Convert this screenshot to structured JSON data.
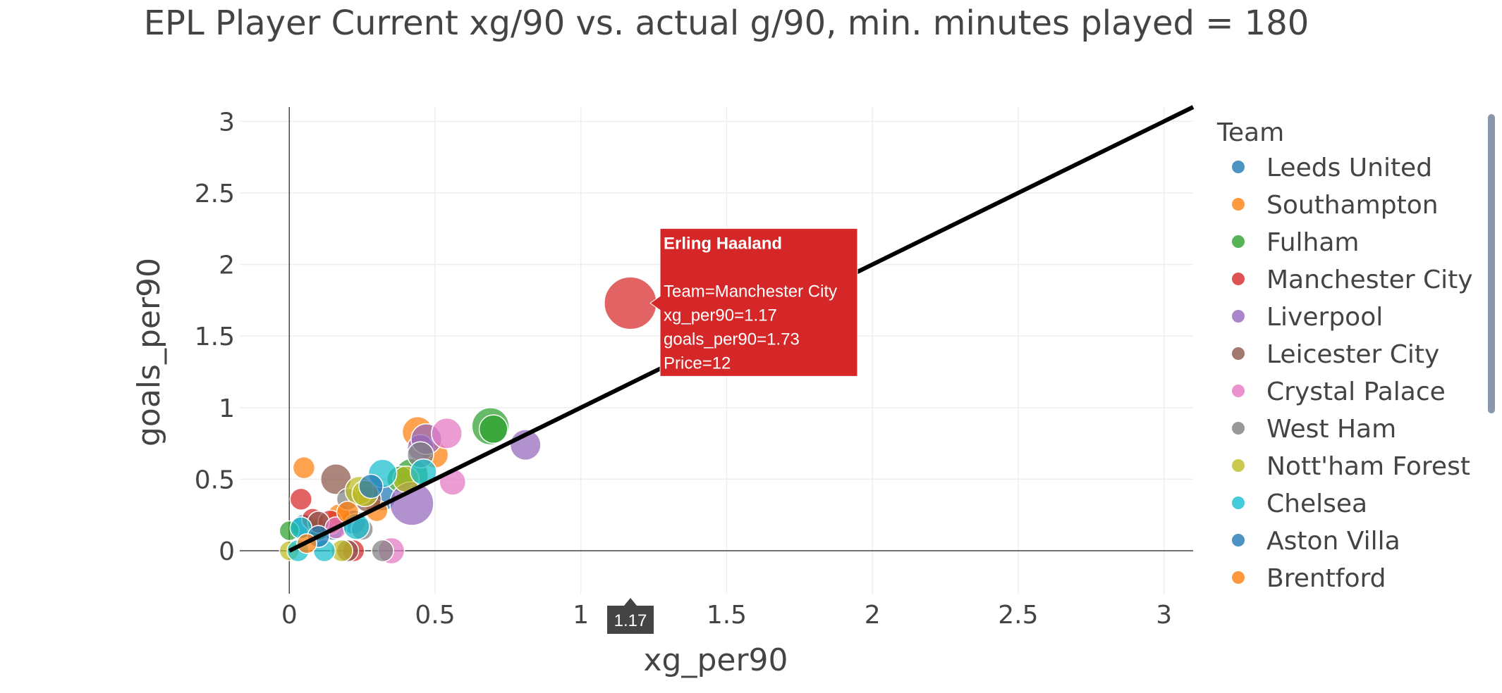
{
  "chart_data": {
    "type": "scatter",
    "title": "EPL Player Current xg/90 vs. actual g/90, min. minutes played = 180",
    "xlabel": "xg_per90",
    "ylabel": "goals_per90",
    "xlim": [
      -0.17,
      3.1
    ],
    "ylim": [
      -0.3,
      3.1
    ],
    "x_ticks": [
      {
        "value": 0,
        "label": "0"
      },
      {
        "value": 0.5,
        "label": "0.5"
      },
      {
        "value": 1,
        "label": "1"
      },
      {
        "value": 1.5,
        "label": "1.5"
      },
      {
        "value": 2,
        "label": "2"
      },
      {
        "value": 2.5,
        "label": "2.5"
      },
      {
        "value": 3,
        "label": "3"
      }
    ],
    "y_ticks": [
      {
        "value": 0,
        "label": "0"
      },
      {
        "value": 0.5,
        "label": "0.5"
      },
      {
        "value": 1,
        "label": "1"
      },
      {
        "value": 1.5,
        "label": "1.5"
      },
      {
        "value": 2,
        "label": "2"
      },
      {
        "value": 2.5,
        "label": "2.5"
      },
      {
        "value": 3,
        "label": "3"
      }
    ],
    "grid": true,
    "legend_title": "Team",
    "legend_position": "right",
    "reference_line": {
      "from": [
        0,
        0
      ],
      "to": [
        3.1,
        3.1
      ],
      "color": "#000000"
    },
    "series": [
      {
        "name": "Leeds United",
        "color": "#1f77b4",
        "points": [
          [
            0.05,
            0.17,
            5.5
          ],
          [
            0.15,
            0.15,
            5
          ],
          [
            0.22,
            0.2,
            5.5
          ],
          [
            0.32,
            0.37,
            6
          ]
        ]
      },
      {
        "name": "Southampton",
        "color": "#ff7f0e",
        "points": [
          [
            0.05,
            0.58,
            5
          ],
          [
            0.44,
            0.83,
            7
          ],
          [
            0.5,
            0.67,
            6
          ],
          [
            0.3,
            0.28,
            5
          ],
          [
            0.17,
            0.25,
            5
          ]
        ]
      },
      {
        "name": "Fulham",
        "color": "#2ca02c",
        "points": [
          [
            0.69,
            0.87,
            8.5
          ],
          [
            0.7,
            0.85,
            6.5
          ],
          [
            0.42,
            0.53,
            7.5
          ],
          [
            0.38,
            0.5,
            6
          ],
          [
            0.0,
            0.14,
            4.5
          ],
          [
            0.1,
            0.15,
            5
          ]
        ]
      },
      {
        "name": "Manchester City",
        "color": "#d62728",
        "points": [
          [
            1.17,
            1.73,
            12
          ],
          [
            0.04,
            0.36,
            5
          ],
          [
            0.08,
            0.22,
            5
          ],
          [
            0.14,
            0.2,
            5.5
          ],
          [
            0.22,
            0.0,
            5
          ]
        ]
      },
      {
        "name": "Liverpool",
        "color": "#9467bd",
        "points": [
          [
            0.81,
            0.74,
            7
          ],
          [
            0.42,
            0.33,
            10
          ],
          [
            0.45,
            0.72,
            6
          ],
          [
            0.47,
            0.78,
            7
          ]
        ]
      },
      {
        "name": "Leicester City",
        "color": "#8c564b",
        "points": [
          [
            0.16,
            0.5,
            7
          ],
          [
            0.27,
            0.36,
            6
          ],
          [
            0.2,
            0.0,
            5
          ],
          [
            0.1,
            0.2,
            5
          ]
        ]
      },
      {
        "name": "Crystal Palace",
        "color": "#e377c2",
        "points": [
          [
            0.56,
            0.48,
            6
          ],
          [
            0.54,
            0.82,
            7
          ],
          [
            0.35,
            0.0,
            6
          ],
          [
            0.16,
            0.16,
            5
          ]
        ]
      },
      {
        "name": "West Ham",
        "color": "#7f7f7f",
        "points": [
          [
            0.32,
            0.0,
            5
          ],
          [
            0.45,
            0.67,
            6
          ],
          [
            0.2,
            0.36,
            5
          ],
          [
            0.25,
            0.15,
            5
          ]
        ]
      },
      {
        "name": "Nott'ham Forest",
        "color": "#bcbd22",
        "points": [
          [
            0.24,
            0.42,
            6.5
          ],
          [
            0.26,
            0.4,
            6
          ],
          [
            0.0,
            0.0,
            4.5
          ],
          [
            0.18,
            0.0,
            5
          ],
          [
            0.4,
            0.5,
            6
          ]
        ]
      },
      {
        "name": "Chelsea",
        "color": "#17becf",
        "points": [
          [
            0.32,
            0.54,
            6.5
          ],
          [
            0.04,
            0.16,
            5
          ],
          [
            0.12,
            0.0,
            5
          ],
          [
            0.23,
            0.17,
            6
          ],
          [
            0.03,
            0.0,
            5
          ],
          [
            0.46,
            0.55,
            6
          ]
        ]
      },
      {
        "name": "Aston Villa",
        "color": "#1f77b4",
        "points": [
          [
            0.1,
            0.1,
            5
          ],
          [
            0.28,
            0.45,
            5.5
          ]
        ]
      },
      {
        "name": "Brentford",
        "color": "#ff7f0e",
        "points": [
          [
            0.2,
            0.27,
            5
          ],
          [
            0.06,
            0.05,
            4.5
          ]
        ]
      }
    ],
    "hover": {
      "point": [
        1.17,
        1.73
      ],
      "name": "Erling Haaland",
      "lines": [
        "Team=Manchester City",
        "xg_per90=1.17",
        "goals_per90=1.73",
        "Price=12"
      ],
      "x_label": "1.17",
      "color": "#d62728"
    }
  },
  "colors": {
    "grid": "#eeeeee",
    "axis": "#444444",
    "scrollbar": "#8a96ab",
    "hover_x_bg": "#444444"
  }
}
